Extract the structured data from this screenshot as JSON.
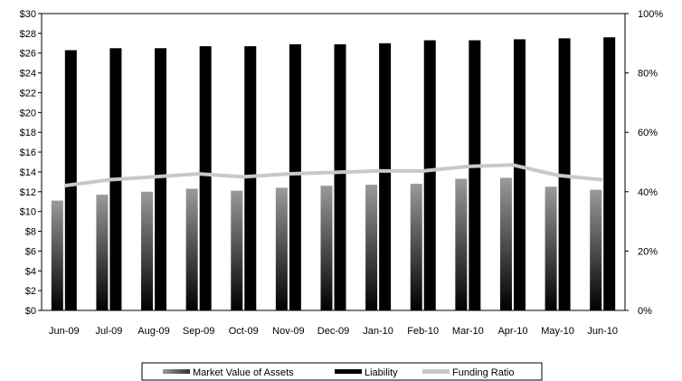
{
  "chart_data": {
    "type": "bar",
    "categories": [
      "Jun-09",
      "Jul-09",
      "Aug-09",
      "Sep-09",
      "Oct-09",
      "Nov-09",
      "Dec-09",
      "Jan-10",
      "Feb-10",
      "Mar-10",
      "Apr-10",
      "May-10",
      "Jun-10"
    ],
    "series": [
      {
        "name": "Market Value of Assets",
        "kind": "bar",
        "axis": "left",
        "values": [
          11.1,
          11.7,
          12.0,
          12.3,
          12.1,
          12.4,
          12.6,
          12.7,
          12.8,
          13.3,
          13.4,
          12.5,
          12.2
        ]
      },
      {
        "name": "Liability",
        "kind": "bar",
        "axis": "left",
        "values": [
          26.3,
          26.5,
          26.5,
          26.7,
          26.7,
          26.9,
          26.9,
          27.0,
          27.3,
          27.3,
          27.4,
          27.5,
          27.6
        ]
      },
      {
        "name": "Funding Ratio",
        "kind": "line",
        "axis": "right",
        "values": [
          42,
          44,
          45,
          46,
          45,
          46,
          46.5,
          47,
          47,
          48.5,
          49,
          45.5,
          44
        ]
      }
    ],
    "y_left": {
      "min": 0,
      "max": 30,
      "step": 2,
      "ticks": [
        "$0",
        "$2",
        "$4",
        "$6",
        "$8",
        "$10",
        "$12",
        "$14",
        "$16",
        "$18",
        "$20",
        "$22",
        "$24",
        "$26",
        "$28",
        "$30"
      ]
    },
    "y_right": {
      "min": 0,
      "max": 100,
      "step": 20,
      "ticks": [
        "0%",
        "20%",
        "40%",
        "60%",
        "80%",
        "100%"
      ]
    },
    "legend_position": "bottom",
    "grid": false,
    "colors": {
      "assets_top": "#9a9a9a",
      "assets_bottom": "#000000",
      "liability": "#000000",
      "funding_ratio": "#c8c8c8"
    }
  }
}
